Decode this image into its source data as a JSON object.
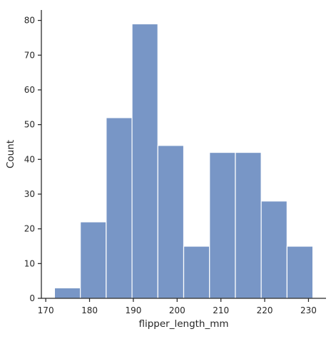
{
  "chart_data": {
    "type": "bar",
    "histogram": true,
    "bin_edges": [
      172.0,
      177.9,
      183.8,
      189.7,
      195.6,
      201.5,
      207.4,
      213.3,
      219.2,
      225.1,
      231.0
    ],
    "values": [
      3,
      22,
      52,
      79,
      44,
      15,
      42,
      42,
      28,
      15
    ],
    "title": "",
    "xlabel": "flipper_length_mm",
    "ylabel": "Count",
    "xlim": [
      169,
      234
    ],
    "ylim": [
      0,
      83
    ],
    "xticks": [
      170,
      180,
      190,
      200,
      210,
      220,
      230
    ],
    "yticks": [
      0,
      10,
      20,
      30,
      40,
      50,
      60,
      70,
      80
    ],
    "bar_color": "#7896c6",
    "bar_edge_color": "#ffffff",
    "grid": false
  }
}
